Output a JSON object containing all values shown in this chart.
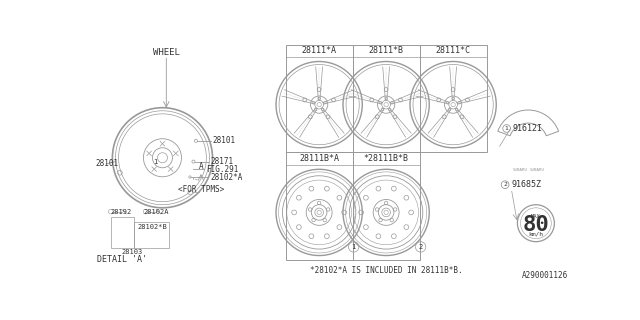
{
  "bg_color": "#ffffff",
  "line_color": "#999999",
  "text_color": "#333333",
  "diagram_id": "A290001126",
  "wheel_label": "WHEEL",
  "part_labels": {
    "28101_top": "28101",
    "28101_left": "28101",
    "28171": "28171",
    "fig291": "FIG.291",
    "28102A_top": "28102*A",
    "28192": "28192",
    "28102A": "28102A",
    "28102B": "28102*B",
    "28103": "28103",
    "detail_a": "DETAIL 'A'",
    "for_tpms": "<FOR TPMS>",
    "pt_a": "A"
  },
  "wheel_variants_row0": [
    "28111*A",
    "28111*B",
    "28111*C"
  ],
  "wheel_variants_row1": [
    "28111B*A",
    "*28111B*B"
  ],
  "sticker_label1": "91612I",
  "sticker_label2": "91685Z",
  "speed": "80",
  "speed_unit": "km/h",
  "speed_prefix": "MAX",
  "footnote": "*28102*A IS INCLUDED IN 28111B*B.",
  "font_family": "monospace"
}
